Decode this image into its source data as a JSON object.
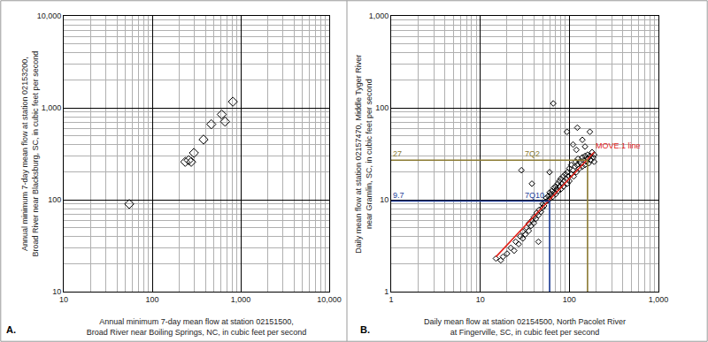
{
  "chart_data": [
    {
      "type": "scatter",
      "log": true,
      "grid": true,
      "panel_label": "A.",
      "x_label": [
        "Annual minimum 7-day mean flow at station 02151500,",
        "Broad River near Boiling Springs, NC, in cubic feet per second"
      ],
      "y_label": [
        "Annual minimum 7-day mean flow at station 02153200,",
        "Broad River near Blacksburg, SC, in cubic feet per second"
      ],
      "xlim": [
        10,
        10000
      ],
      "ylim": [
        10,
        10000
      ],
      "xticks": [
        10,
        100,
        {
          "value": 1000,
          "label": "1,000"
        },
        {
          "value": 10000,
          "label": "10,000"
        }
      ],
      "yticks": [
        10,
        100,
        {
          "value": 1000,
          "label": "1,000"
        },
        {
          "value": 10000,
          "label": "10,000"
        }
      ],
      "series": [
        {
          "type": "scatter",
          "marker": "diamond-open",
          "color": "#000000",
          "x": [
            55,
            236,
            258,
            276,
            296,
            380,
            465,
            610,
            665,
            815
          ],
          "values": [
            90,
            259,
            270,
            259,
            324,
            453,
            665,
            850,
            710,
            1170
          ]
        }
      ]
    },
    {
      "type": "scatter",
      "log": true,
      "grid": true,
      "panel_label": "B.",
      "x_label": [
        "Daily mean flow at station 02154500, North Pacolet River",
        "at Fingerville, SC, in cubic feet per second"
      ],
      "y_label": [
        "Daily mean flow at station 02157470, Middle Tyger River",
        "near Gramlin, SC, in cubic feet per second"
      ],
      "xlim": [
        1,
        1000
      ],
      "ylim": [
        1,
        1000
      ],
      "xticks": [
        1,
        10,
        100,
        {
          "value": 1000,
          "label": "1,000"
        }
      ],
      "yticks": [
        1,
        10,
        100,
        {
          "value": 1000,
          "label": "1,000"
        }
      ],
      "series": [
        {
          "type": "scatter",
          "marker": "diamond-open",
          "color": "#000000",
          "x": [
            15,
            17,
            18,
            20,
            22,
            24,
            25,
            27,
            28,
            29,
            30,
            30,
            32,
            33,
            35,
            35,
            37,
            38,
            38,
            40,
            40,
            42,
            43,
            45,
            45,
            46,
            48,
            50,
            50,
            52,
            54,
            55,
            57,
            58,
            60,
            60,
            60,
            62,
            64,
            65,
            66,
            67,
            68,
            70,
            70,
            72,
            74,
            75,
            77,
            78,
            80,
            80,
            83,
            85,
            86,
            88,
            90,
            92,
            94,
            95,
            95,
            98,
            100,
            100,
            105,
            105,
            110,
            110,
            112,
            115,
            118,
            120,
            120,
            122,
            123,
            125,
            130,
            130,
            135,
            140,
            140,
            140,
            145,
            150,
            150,
            150,
            155,
            160,
            160,
            165,
            170,
            170,
            175,
            180,
            185,
            190,
            190
          ],
          "values": [
            2.3,
            2.2,
            2.4,
            2.6,
            3.0,
            2.8,
            3.5,
            3.3,
            4.0,
            21,
            3.8,
            4.5,
            4.2,
            5.0,
            4.6,
            5.5,
            5.2,
            6.0,
            15,
            5.6,
            6.5,
            6.2,
            7.2,
            6.8,
            3.5,
            7.8,
            7.4,
            8.2,
            9.0,
            8.6,
            9.5,
            10.5,
            9.8,
            11,
            10.2,
            12,
            20,
            11.5,
            12.5,
            10.8,
            112,
            13.5,
            12,
            14,
            11.5,
            13,
            15,
            12.5,
            16,
            14,
            13,
            17,
            15,
            18,
            14,
            16,
            19,
            17,
            55,
            20,
            15,
            18,
            22,
            16,
            19,
            24,
            21,
            40,
            18,
            23,
            26,
            20,
            35,
            24,
            61,
            28,
            22,
            26,
            25,
            29,
            23,
            45,
            27,
            30,
            24,
            38,
            26,
            31,
            28,
            25,
            30,
            55,
            27,
            33,
            29,
            31,
            26
          ]
        },
        {
          "type": "line",
          "color": "#e3231b",
          "x": [
            15,
            190
          ],
          "values": [
            2.4,
            33
          ]
        },
        {
          "type": "line",
          "color": "#8b7a32",
          "x": [
            1,
            160,
            160
          ],
          "values": [
            27,
            27,
            1
          ]
        },
        {
          "type": "line",
          "color": "#1f3f99",
          "x": [
            1,
            60,
            60
          ],
          "values": [
            9.7,
            9.7,
            1
          ]
        }
      ],
      "annotations": [
        {
          "text": "27",
          "x": 1,
          "y": 27,
          "color": "#8b7a32"
        },
        {
          "text": "7Q2",
          "x": 30,
          "y": 27,
          "color": "#8b7a32"
        },
        {
          "text": "9.7",
          "x": 1,
          "y": 9.7,
          "color": "#1f3f99"
        },
        {
          "text": "7Q10",
          "x": 30,
          "y": 9.7,
          "color": "#1f3f99"
        },
        {
          "text": "MOVE.1 line",
          "x": 190,
          "y": 33,
          "color": "#e3231b"
        }
      ]
    }
  ]
}
